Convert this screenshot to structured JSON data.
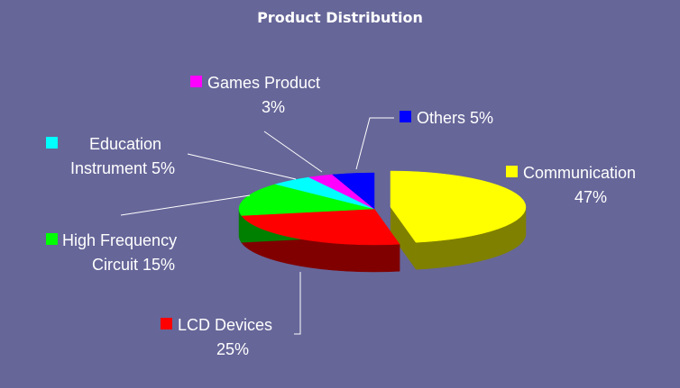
{
  "chart_data": {
    "type": "pie",
    "title": "Product Distribution",
    "slices": [
      {
        "label": "Communication",
        "pct_label": "47%",
        "value": 47,
        "color": "#ffff00",
        "side": "#808000"
      },
      {
        "label": "LCD Devices",
        "pct_label": "25%",
        "value": 25,
        "color": "#ff0000",
        "side": "#800000"
      },
      {
        "label": "High Frequency Circuit",
        "line1": "High Frequency",
        "line2": "Circuit 15%",
        "pct_label": "15%",
        "value": 15,
        "color": "#00ff00",
        "side": "#008000"
      },
      {
        "label": "Education Instrument",
        "line1": "Education",
        "line2": "Instrument 5%",
        "pct_label": "5%",
        "value": 5,
        "color": "#00ffff",
        "side": "#008080"
      },
      {
        "label": "Games Product",
        "pct_label": "3%",
        "value": 3,
        "color": "#ff00ff",
        "side": "#800080"
      },
      {
        "label": "Others",
        "text": "Others 5%",
        "pct_label": "5%",
        "value": 5,
        "color": "#0000ff",
        "side": "#000080"
      }
    ],
    "legend": "beside-slices",
    "exploded": "Communication"
  }
}
